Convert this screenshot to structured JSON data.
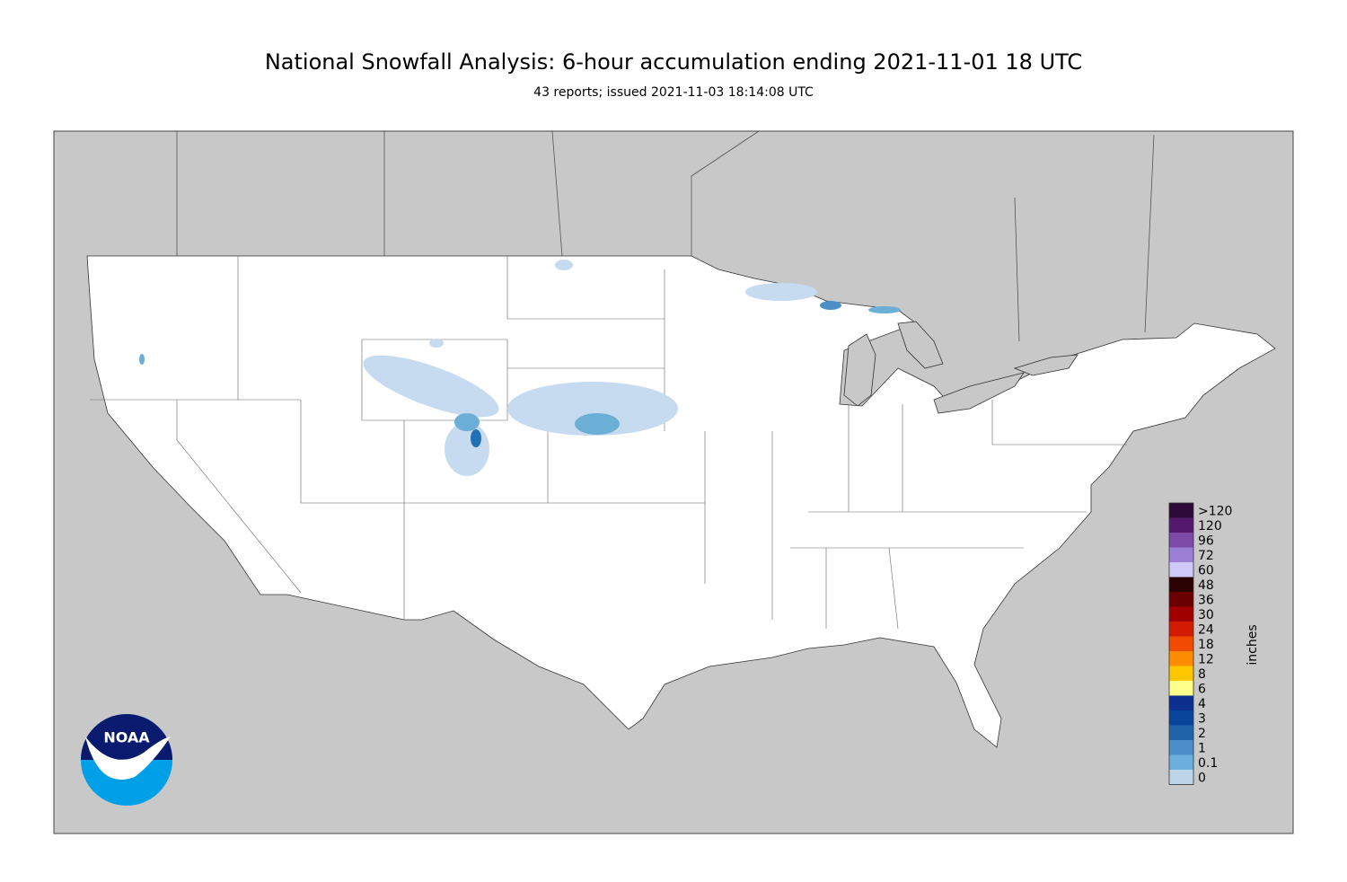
{
  "header": {
    "title": "National Snowfall Analysis: 6-hour accumulation ending 2021-11-01 18 UTC",
    "subtitle": "43 reports; issued 2021-11-03 18:14:08 UTC"
  },
  "legend": {
    "label": "inches",
    "entries": [
      {
        "label": ">120",
        "color": "#2d0a3a"
      },
      {
        "label": "120",
        "color": "#54196e"
      },
      {
        "label": "96",
        "color": "#7e4aa8"
      },
      {
        "label": "72",
        "color": "#9c80d6"
      },
      {
        "label": "60",
        "color": "#cfcaf7"
      },
      {
        "label": "48",
        "color": "#2b0303"
      },
      {
        "label": "36",
        "color": "#6b0000"
      },
      {
        "label": "30",
        "color": "#a00000"
      },
      {
        "label": "24",
        "color": "#d21b00"
      },
      {
        "label": "18",
        "color": "#f24a00"
      },
      {
        "label": "12",
        "color": "#ff8c00"
      },
      {
        "label": "8",
        "color": "#ffc700"
      },
      {
        "label": "6",
        "color": "#ffff8c"
      },
      {
        "label": "4",
        "color": "#0a2f8f"
      },
      {
        "label": "3",
        "color": "#08449a"
      },
      {
        "label": "2",
        "color": "#1f63aa"
      },
      {
        "label": "1",
        "color": "#4c8ec8"
      },
      {
        "label": "0.1",
        "color": "#6cafdc"
      },
      {
        "label": "0",
        "color": "#bcd6e8"
      }
    ]
  },
  "logo": {
    "text": "NOAA"
  }
}
